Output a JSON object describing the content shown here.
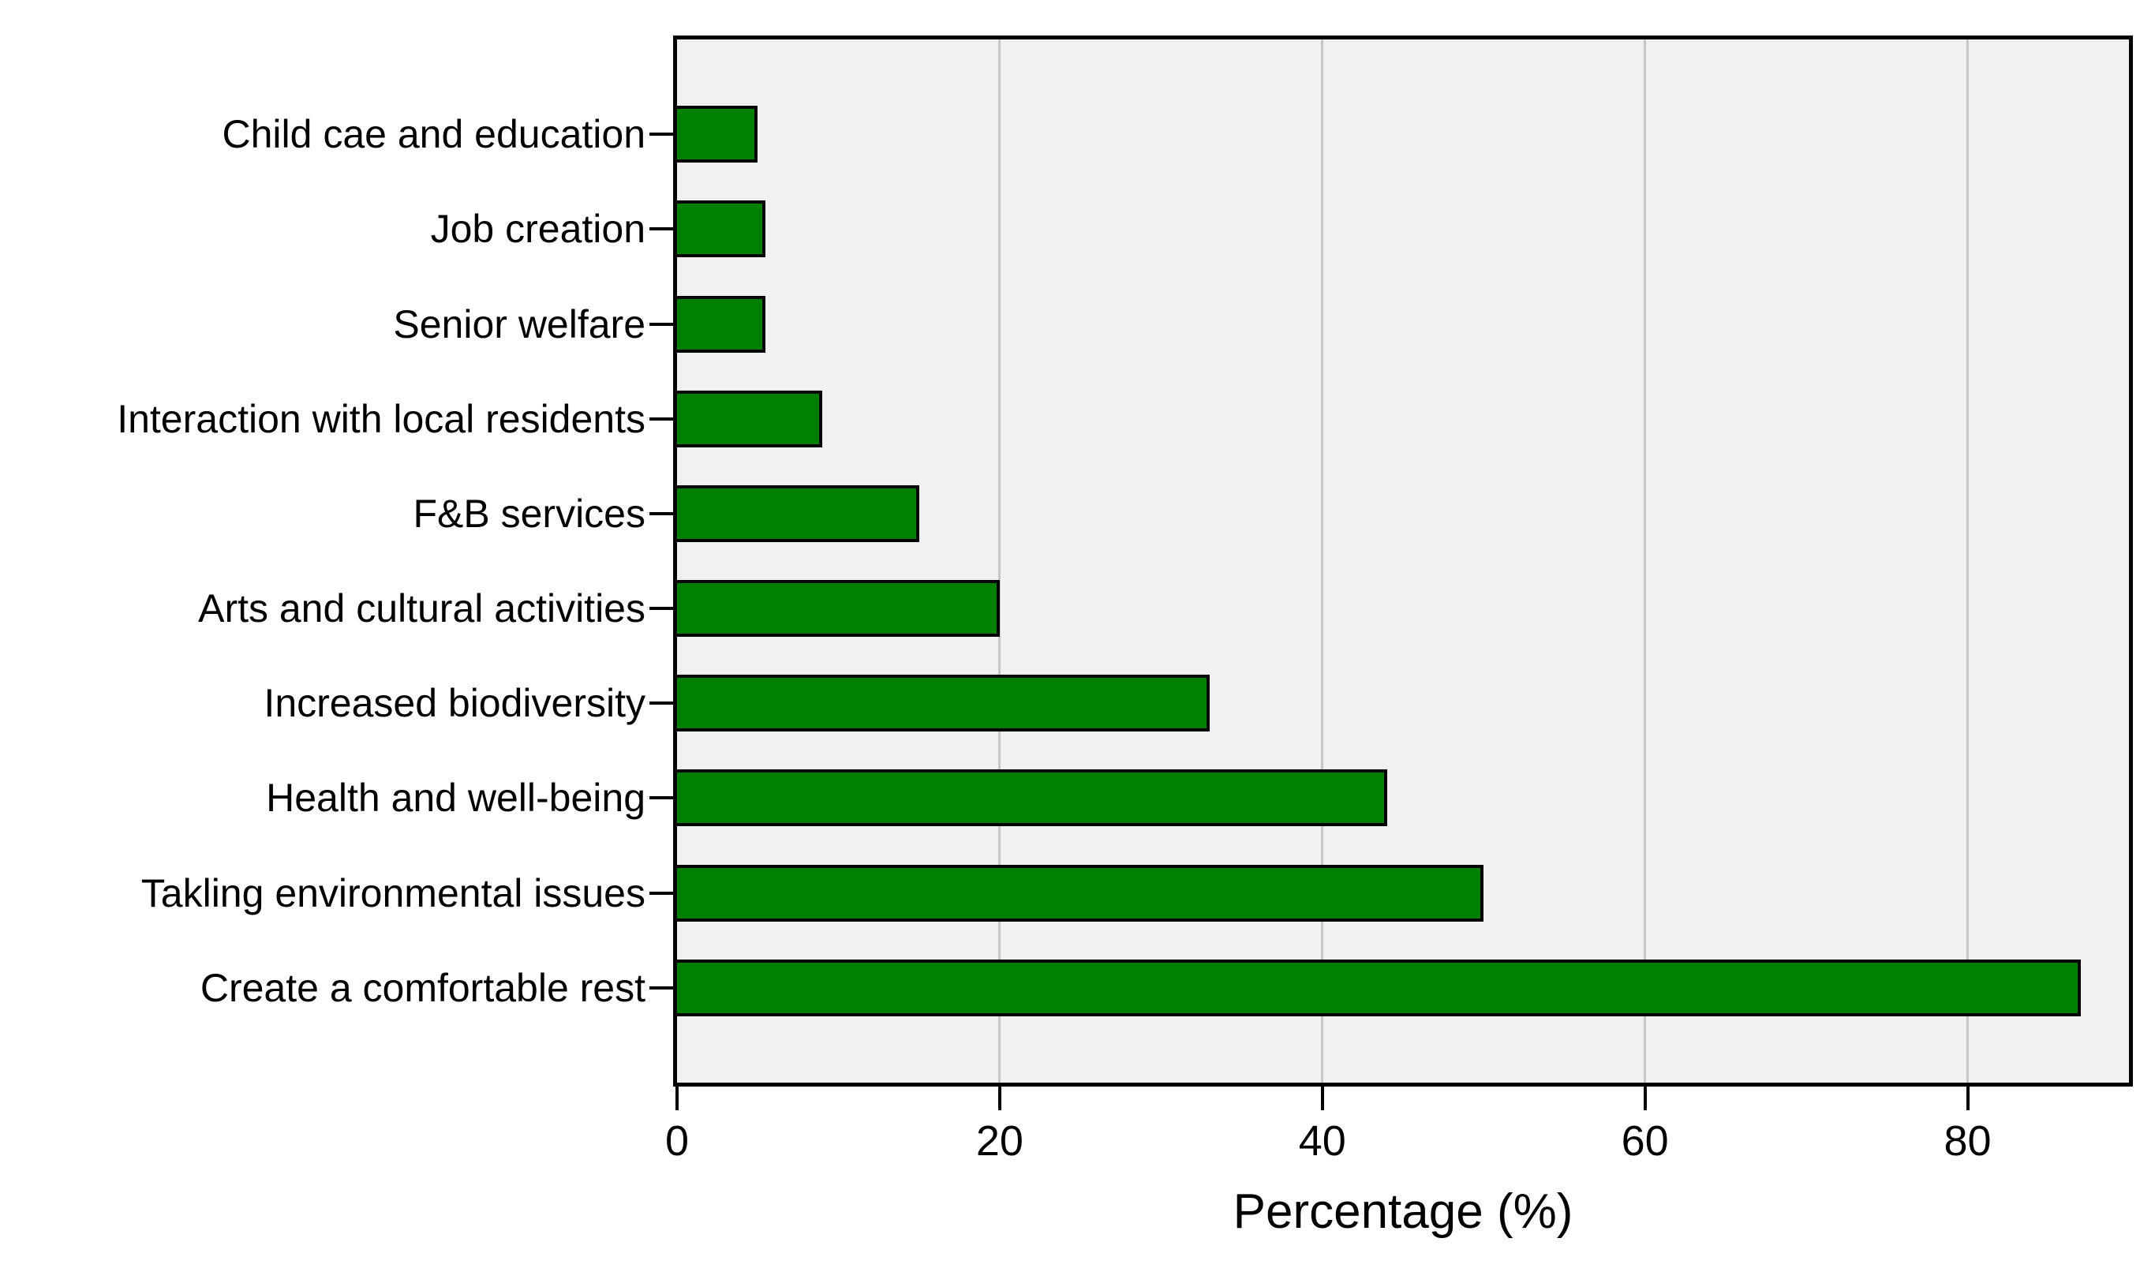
{
  "chart_data": {
    "type": "bar",
    "orientation": "horizontal",
    "title": "",
    "xlabel": "Percentage (%)",
    "ylabel": "",
    "categories": [
      "Child cae and education",
      "Job creation",
      "Senior welfare",
      "Interaction with local residents",
      "F&B services",
      "Arts and cultural activities",
      "Increased biodiversity",
      "Health and well-being",
      "Takling environmental issues",
      "Create a comfortable rest"
    ],
    "values": [
      5,
      5.5,
      5.5,
      9,
      15,
      20,
      33,
      44,
      50,
      87
    ],
    "xlim": [
      0,
      90
    ],
    "xticks": [
      0,
      20,
      40,
      60,
      80
    ],
    "grid": "vertical gridlines at 20, 40, 60, 80 behind bars",
    "legend": "none",
    "colors": {
      "bar_fill": "#008000",
      "bar_edge": "#000000",
      "plot_background": "#f1f1f1",
      "page_background": "#ffffff",
      "gridline": "#c6c6c6",
      "text": "#000000",
      "plot_border": "#000000"
    }
  }
}
